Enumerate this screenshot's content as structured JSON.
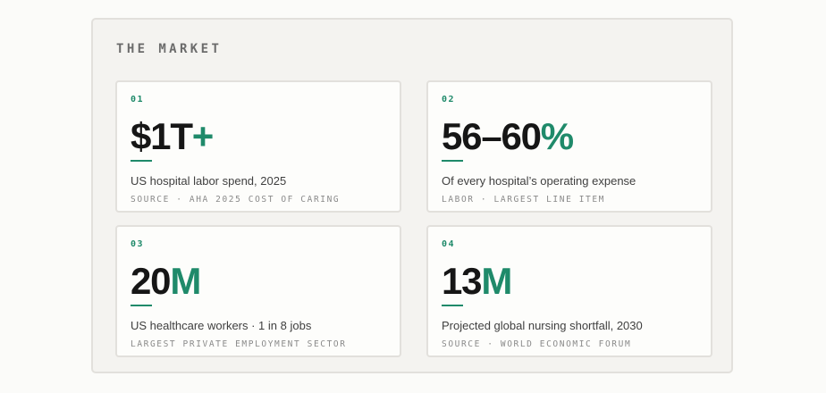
{
  "section": {
    "title": "THE MARKET"
  },
  "colors": {
    "accent": "#1f8a6a",
    "text": "#161616",
    "panel_bg": "#f4f3f0",
    "card_bg": "#fdfdfb",
    "border": "#e2e0dc"
  },
  "cards": [
    {
      "number": "01",
      "value_main": "$1T",
      "value_accent": "+",
      "description": "US hospital labor spend, 2025",
      "subtext": "SOURCE · AHA 2025 COST OF CARING"
    },
    {
      "number": "02",
      "value_main": "56–60",
      "value_accent": "%",
      "description": "Of every hospital’s operating expense",
      "subtext": "LABOR · LARGEST LINE ITEM"
    },
    {
      "number": "03",
      "value_main": "20",
      "value_accent": "M",
      "description": "US healthcare workers · 1 in 8 jobs",
      "subtext": "LARGEST PRIVATE EMPLOYMENT SECTOR"
    },
    {
      "number": "04",
      "value_main": "13",
      "value_accent": "M",
      "description": "Projected global nursing shortfall, 2030",
      "subtext": "SOURCE · WORLD ECONOMIC FORUM"
    }
  ]
}
